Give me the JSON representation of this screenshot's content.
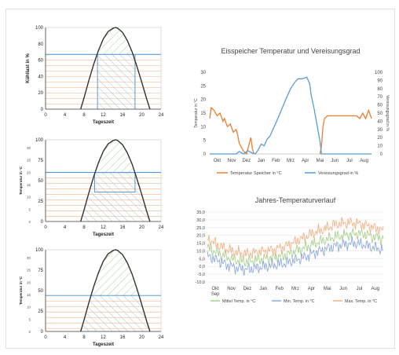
{
  "chart_data": [
    {
      "id": "daily-1",
      "type": "area",
      "xlabel": "Tageszeit",
      "ylabel": "Kühllast in %",
      "x_ticks": [
        0,
        4,
        8,
        12,
        16,
        20,
        24
      ],
      "y_ticks": [
        0,
        20,
        40,
        60,
        80,
        100
      ],
      "xlim": [
        0,
        24
      ],
      "ylim": [
        0,
        100
      ],
      "curve": {
        "x": [
          7.3,
          8,
          9,
          10,
          11,
          12,
          13,
          14,
          14.6,
          15,
          16,
          17,
          18,
          19,
          20,
          21,
          21.7
        ],
        "y": [
          0,
          14,
          35,
          55,
          72,
          86,
          95,
          99,
          100,
          99,
          94,
          84,
          70,
          52,
          33,
          13,
          0
        ]
      },
      "threshold": 67,
      "band": [
        10.8,
        18.6
      ],
      "colors": {
        "curve": "#333333",
        "threshold": "#5b9bd5",
        "hatch_above": "#a9d18e",
        "hatch_below": "#9dc3e6",
        "stripes": "#f4b183",
        "axis": "#444444"
      }
    },
    {
      "id": "daily-2",
      "type": "area",
      "xlabel": "Tageszeit",
      "ylabel": "Temperatur in °C",
      "x_ticks": [
        0,
        4,
        8,
        12,
        16,
        20,
        24
      ],
      "y_ticks": [
        0,
        25,
        50,
        75,
        100
      ],
      "y_ticks_right_inner": [
        0,
        5,
        10,
        15,
        20,
        25,
        30
      ],
      "xlim": [
        0,
        24
      ],
      "ylim": [
        0,
        100
      ],
      "curve": {
        "x": [
          7.3,
          8,
          9,
          10,
          11,
          12,
          13,
          14,
          14.6,
          15,
          16,
          17,
          18,
          19,
          20,
          21,
          21.7
        ],
        "y": [
          0,
          14,
          35,
          55,
          72,
          86,
          95,
          99,
          100,
          99,
          94,
          84,
          70,
          52,
          33,
          13,
          0
        ]
      },
      "threshold": 60,
      "box": {
        "x0": 10.2,
        "x1": 18.6,
        "y0": 36,
        "y1": 60
      },
      "colors": {
        "curve": "#333333",
        "threshold": "#5b9bd5",
        "hatch_above": "#a9d18e",
        "hatch_below": "#9dc3e6",
        "stripes": "#f4b183",
        "axis": "#444444"
      }
    },
    {
      "id": "daily-3",
      "type": "area",
      "xlabel": "Tageszeit",
      "ylabel": "Temperatur in °C",
      "x_ticks": [
        0,
        4,
        8,
        12,
        16,
        20,
        24
      ],
      "y_ticks": [
        0,
        25,
        50,
        75,
        100
      ],
      "y_ticks_right_inner": [
        0,
        5,
        10,
        15,
        20,
        25,
        30
      ],
      "xlim": [
        0,
        24
      ],
      "ylim": [
        0,
        100
      ],
      "curve": {
        "x": [
          7.3,
          8,
          9,
          10,
          11,
          12,
          13,
          14,
          14.6,
          15,
          16,
          17,
          18,
          19,
          20,
          21,
          21.7
        ],
        "y": [
          0,
          14,
          35,
          55,
          72,
          86,
          95,
          99,
          100,
          99,
          94,
          84,
          70,
          52,
          33,
          13,
          0
        ]
      },
      "threshold": 44,
      "colors": {
        "curve": "#333333",
        "threshold": "#5b9bd5",
        "hatch_above": "#a9d18e",
        "hatch_below": "#9dc3e6",
        "stripes": "#f4b183",
        "axis": "#444444"
      }
    },
    {
      "id": "eisspeicher",
      "type": "line",
      "title": "Eisspeicher Temperatur und Vereisungsgrad",
      "ylabel": "Temperatur in °C",
      "y2label": "Vereisungsgrad in %",
      "categories": [
        "Okt",
        "Nov",
        "Dez",
        "Jan",
        "Feb",
        "Mrz",
        "Apr",
        "Mai",
        "Jun",
        "Jul",
        "Aug"
      ],
      "y_ticks": [
        0,
        5,
        10,
        15,
        20,
        25,
        30
      ],
      "y2_ticks": [
        0,
        10,
        20,
        30,
        40,
        50,
        60,
        70,
        80,
        90,
        100
      ],
      "ylim": [
        0,
        30
      ],
      "y2lim": [
        0,
        100
      ],
      "series": [
        {
          "name": "Temperatur Speicher in °C",
          "axis": "left",
          "color": "#ed7d31",
          "x": [
            0,
            0.1,
            0.3,
            0.5,
            0.7,
            0.9,
            1.0,
            1.2,
            1.4,
            1.6,
            1.8,
            1.9,
            2.0,
            2.1,
            2.3,
            2.5,
            2.7,
            2.8,
            2.9,
            3.0,
            7.5,
            7.6,
            7.7,
            7.8,
            8.0,
            8.5,
            9.0,
            9.5,
            10.0,
            10.2,
            10.4,
            10.6,
            10.8,
            11.0
          ],
          "y": [
            13,
            17,
            16,
            14,
            15,
            12,
            13,
            10,
            11,
            8,
            9,
            7,
            4,
            3,
            1,
            0,
            4,
            6,
            2,
            0,
            0,
            3,
            10,
            13,
            14,
            14,
            14,
            14,
            14,
            13,
            15,
            13,
            16,
            13
          ]
        },
        {
          "name": "Vereisungsgrad in %",
          "axis": "right",
          "color": "#5b9bd5",
          "x": [
            0,
            1.8,
            2.0,
            2.3,
            2.6,
            2.9,
            3.1,
            3.3,
            3.5,
            3.7,
            3.9,
            4.1,
            4.3,
            4.6,
            4.9,
            5.2,
            5.5,
            5.8,
            6.0,
            6.3,
            6.6,
            6.8,
            6.9,
            7.1,
            7.3,
            7.5,
            7.6,
            11
          ],
          "y": [
            0,
            0,
            3,
            0,
            4,
            1,
            0,
            5,
            12,
            10,
            18,
            22,
            30,
            42,
            55,
            68,
            80,
            88,
            92,
            92,
            94,
            86,
            72,
            55,
            35,
            15,
            0,
            0
          ]
        }
      ]
    },
    {
      "id": "jahres",
      "type": "line",
      "title": "Jahres-Temperaturverlauf",
      "categories": [
        "Okt",
        "Nov",
        "Dez",
        "Jan",
        "Feb",
        "Mrz",
        "Apr",
        "Mai",
        "Jun",
        "Jul",
        "Aug"
      ],
      "x_extra_label": "Sep",
      "y_ticks": [
        "-10,0",
        "-5,0",
        "0,0",
        "5,0",
        "10,0",
        "15,0",
        "20,0",
        "25,0",
        "30,0",
        "35,0"
      ],
      "ylim": [
        -10,
        35
      ],
      "series": [
        {
          "name": "Mittel Temp. in °C",
          "color": "#a9d18e",
          "base": [
            12,
            9,
            6,
            4,
            3,
            4,
            5,
            6,
            7,
            10,
            12,
            15,
            17,
            19,
            20,
            21,
            21,
            19,
            18
          ]
        },
        {
          "name": "Min. Temp. in °C",
          "color": "#8faadc",
          "base": [
            7,
            4,
            1,
            -1,
            -2,
            -1,
            0,
            1,
            2,
            4,
            6,
            9,
            11,
            13,
            14,
            15,
            14,
            12,
            11
          ]
        },
        {
          "name": "Max. Temp. in °C",
          "color": "#f4b183",
          "base": [
            18,
            14,
            11,
            9,
            8,
            9,
            10,
            11,
            13,
            16,
            19,
            22,
            24,
            27,
            28,
            28,
            27,
            25,
            23
          ]
        }
      ]
    }
  ]
}
